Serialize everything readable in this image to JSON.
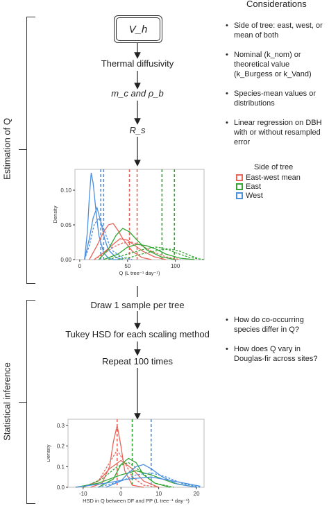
{
  "considerations_title": "Considerations",
  "section_labels": {
    "estimation": "Estimation of Q",
    "inference": "Statistical inference"
  },
  "flow": {
    "vh_box": "V_h",
    "thermal_diffusivity": "Thermal diffusivity",
    "mc_pb": "m_c and ρ_b",
    "rs": "R_s",
    "draw_sample": "Draw 1 sample per tree",
    "tukey": "Tukey HSD for each scaling method",
    "repeat": "Repeat 100 times"
  },
  "considerations_top": [
    "Side of tree: east, west, or mean of both",
    "Nominal (k_nom) or theoretical value (k_Burgess or k_Vand)",
    "Species-mean values or distributions",
    "Linear regression on DBH with or without resampled error"
  ],
  "considerations_bottom": [
    "How do co-occurring species differ in Q?",
    "How does Q vary in Douglas-fir across sites?"
  ],
  "legend": {
    "title": "Side of tree",
    "items": [
      {
        "label": "East-west mean",
        "color": "#e8645a"
      },
      {
        "label": "East",
        "color": "#33a532"
      },
      {
        "label": "West",
        "color": "#4a8fe0"
      }
    ]
  },
  "colors": {
    "east_west_mean": "#e8645a",
    "east": "#33a532",
    "west": "#4a8fe0"
  },
  "chart_data": [
    {
      "type": "line",
      "title": "",
      "xlabel": "Q (L tree⁻¹ day⁻¹)",
      "ylabel": "Density",
      "xlim": [
        -5,
        130
      ],
      "ylim": [
        0,
        0.13
      ],
      "xticks": [
        0,
        50,
        100
      ],
      "yticks": [
        0.0,
        0.05,
        0.1
      ],
      "ytick_labels": [
        "0.00",
        "0.05",
        "0.10"
      ],
      "vlines": [
        {
          "x": 22,
          "color": "west"
        },
        {
          "x": 25,
          "color": "west"
        },
        {
          "x": 52,
          "color": "east_west_mean"
        },
        {
          "x": 60,
          "color": "east_west_mean"
        },
        {
          "x": 86,
          "color": "east"
        },
        {
          "x": 99,
          "color": "east"
        }
      ],
      "series": [
        {
          "color": "west",
          "dash": false,
          "x": [
            5,
            8,
            10,
            12,
            14,
            17,
            20,
            25,
            30,
            35,
            40
          ],
          "y": [
            0,
            0.04,
            0.09,
            0.125,
            0.11,
            0.07,
            0.035,
            0.01,
            0.002,
            0,
            0
          ]
        },
        {
          "color": "west",
          "dash": false,
          "x": [
            5,
            10,
            14,
            18,
            22,
            26,
            30,
            38,
            45
          ],
          "y": [
            0,
            0.03,
            0.06,
            0.075,
            0.055,
            0.03,
            0.014,
            0.003,
            0
          ]
        },
        {
          "color": "west",
          "dash": true,
          "x": [
            5,
            10,
            15,
            20,
            25,
            30,
            35,
            45,
            55
          ],
          "y": [
            0,
            0.02,
            0.05,
            0.06,
            0.045,
            0.025,
            0.012,
            0.003,
            0
          ]
        },
        {
          "color": "east_west_mean",
          "dash": false,
          "x": [
            10,
            18,
            25,
            30,
            35,
            40,
            45,
            55,
            65,
            75
          ],
          "y": [
            0,
            0.02,
            0.04,
            0.05,
            0.052,
            0.042,
            0.03,
            0.012,
            0.003,
            0
          ]
        },
        {
          "color": "east_west_mean",
          "dash": false,
          "x": [
            15,
            25,
            35,
            42,
            50,
            58,
            66,
            78,
            90
          ],
          "y": [
            0,
            0.01,
            0.022,
            0.03,
            0.028,
            0.02,
            0.012,
            0.004,
            0
          ]
        },
        {
          "color": "east_west_mean",
          "dash": true,
          "x": [
            15,
            25,
            35,
            45,
            55,
            65,
            75,
            90,
            105
          ],
          "y": [
            0,
            0.008,
            0.018,
            0.024,
            0.025,
            0.02,
            0.012,
            0.004,
            0
          ]
        },
        {
          "color": "east",
          "dash": false,
          "x": [
            20,
            30,
            38,
            45,
            52,
            60,
            70,
            85,
            100
          ],
          "y": [
            0,
            0.015,
            0.035,
            0.045,
            0.04,
            0.028,
            0.014,
            0.004,
            0
          ]
        },
        {
          "color": "east",
          "dash": false,
          "x": [
            25,
            40,
            50,
            60,
            70,
            80,
            90,
            105,
            120
          ],
          "y": [
            0,
            0.008,
            0.018,
            0.022,
            0.02,
            0.015,
            0.008,
            0.002,
            0
          ]
        },
        {
          "color": "east",
          "dash": true,
          "x": [
            30,
            45,
            60,
            70,
            80,
            90,
            100,
            115,
            130
          ],
          "y": [
            0,
            0.006,
            0.012,
            0.016,
            0.018,
            0.016,
            0.01,
            0.003,
            0
          ]
        },
        {
          "color": "east",
          "dash": true,
          "x": [
            40,
            55,
            70,
            85,
            95,
            105,
            115,
            125
          ],
          "y": [
            0,
            0.004,
            0.01,
            0.014,
            0.015,
            0.012,
            0.006,
            0.001
          ]
        }
      ]
    },
    {
      "type": "line",
      "title": "",
      "xlabel": "HSD in Q between DF and PP (L tree⁻¹ day⁻¹)",
      "ylabel": "Density",
      "xlim": [
        -14,
        22
      ],
      "ylim": [
        0,
        0.33
      ],
      "xticks": [
        -10,
        0,
        10,
        20
      ],
      "yticks": [
        0.0,
        0.1,
        0.2,
        0.3
      ],
      "ytick_labels": [
        "0.0",
        "0.1",
        "0.2",
        "0.3"
      ],
      "vlines": [
        {
          "x": -1,
          "color": "east_west_mean"
        },
        {
          "x": 3,
          "color": "east"
        },
        {
          "x": 8,
          "color": "west"
        }
      ],
      "series": [
        {
          "color": "east_west_mean",
          "dash": false,
          "x": [
            -8,
            -5,
            -3,
            -2,
            -1,
            0,
            1,
            3,
            6
          ],
          "y": [
            0,
            0.02,
            0.1,
            0.22,
            0.3,
            0.2,
            0.08,
            0.01,
            0
          ]
        },
        {
          "color": "east_west_mean",
          "dash": true,
          "x": [
            -10,
            -6,
            -3,
            -1,
            1,
            3,
            6,
            10
          ],
          "y": [
            0,
            0.03,
            0.12,
            0.18,
            0.12,
            0.05,
            0.01,
            0
          ]
        },
        {
          "color": "east_west_mean",
          "dash": false,
          "x": [
            -10,
            -6,
            -3,
            0,
            3,
            6,
            10
          ],
          "y": [
            0,
            0.03,
            0.09,
            0.13,
            0.09,
            0.03,
            0
          ]
        },
        {
          "color": "east",
          "dash": false,
          "x": [
            -6,
            -2,
            0,
            2,
            4,
            6,
            9,
            13
          ],
          "y": [
            0,
            0.04,
            0.11,
            0.14,
            0.12,
            0.06,
            0.02,
            0
          ]
        },
        {
          "color": "east",
          "dash": true,
          "x": [
            -10,
            -5,
            -1,
            2,
            5,
            9,
            14
          ],
          "y": [
            0,
            0.04,
            0.1,
            0.12,
            0.08,
            0.02,
            0
          ]
        },
        {
          "color": "east",
          "dash": false,
          "x": [
            -12,
            -6,
            0,
            4,
            8,
            14,
            20
          ],
          "y": [
            0,
            0.02,
            0.06,
            0.08,
            0.06,
            0.02,
            0
          ]
        },
        {
          "color": "west",
          "dash": false,
          "x": [
            -4,
            0,
            2,
            4,
            6,
            8,
            11,
            15,
            20
          ],
          "y": [
            0,
            0.03,
            0.07,
            0.1,
            0.11,
            0.09,
            0.05,
            0.015,
            0
          ]
        },
        {
          "color": "west",
          "dash": true,
          "x": [
            -6,
            0,
            4,
            8,
            12,
            16,
            21
          ],
          "y": [
            0,
            0.03,
            0.06,
            0.07,
            0.05,
            0.02,
            0
          ]
        },
        {
          "color": "west",
          "dash": false,
          "x": [
            -12,
            -4,
            2,
            8,
            14,
            21
          ],
          "y": [
            0,
            0.02,
            0.04,
            0.05,
            0.03,
            0.005
          ]
        }
      ]
    }
  ]
}
